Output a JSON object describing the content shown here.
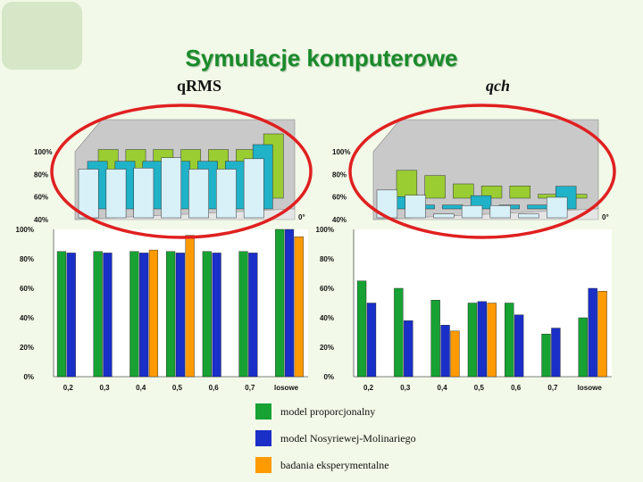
{
  "title": "Symulacje komputerowe",
  "colors": {
    "proportional": "#17a233",
    "nosyriewej": "#1a2fc8",
    "experimental": "#ff9a00",
    "ellipse": "#e02020",
    "title": "#1a8a2a"
  },
  "chart_data": [
    {
      "type": "bar",
      "panel_label": "qRMS",
      "categories": [
        "0,2",
        "0,3",
        "0,4",
        "0,5",
        "0,6",
        "0,7",
        "losowe"
      ],
      "ylim": [
        0,
        100
      ],
      "ytick_labels": [
        "0%",
        "20%",
        "40%",
        "60%",
        "80%",
        "100%"
      ],
      "series": [
        {
          "key": "proportional",
          "values": [
            85,
            85,
            85,
            85,
            85,
            85,
            100
          ]
        },
        {
          "key": "nosyriewej",
          "values": [
            84,
            84,
            84,
            84,
            84,
            84,
            100
          ]
        },
        {
          "key": "experimental",
          "values": [
            null,
            null,
            86,
            96,
            null,
            null,
            95
          ]
        }
      ],
      "inset_3d": {
        "ytick_labels": [
          "40%",
          "60%",
          "80%",
          "100%"
        ],
        "angle_label": "0°"
      }
    },
    {
      "type": "bar",
      "panel_label": "qch",
      "categories": [
        "0,2",
        "0,3",
        "0,4",
        "0,5",
        "0,6",
        "0,7",
        "losowe"
      ],
      "ylim": [
        0,
        100
      ],
      "ytick_labels": [
        "0%",
        "20%",
        "40%",
        "60%",
        "80%",
        "100%"
      ],
      "series": [
        {
          "key": "proportional",
          "values": [
            65,
            60,
            52,
            50,
            50,
            29,
            40
          ]
        },
        {
          "key": "nosyriewej",
          "values": [
            50,
            38,
            35,
            51,
            42,
            33,
            60
          ]
        },
        {
          "key": "experimental",
          "values": [
            null,
            null,
            31,
            50,
            null,
            null,
            58
          ]
        }
      ],
      "inset_3d": {
        "ytick_labels": [
          "40%",
          "60%",
          "80%",
          "100%"
        ],
        "angle_label": "0°"
      }
    }
  ],
  "legend": [
    {
      "key": "proportional",
      "label": "model proporcjonalny"
    },
    {
      "key": "nosyriewej",
      "label": "model Nosyriewej-Molinariego"
    },
    {
      "key": "experimental",
      "label": "badania eksperymentalne"
    }
  ]
}
